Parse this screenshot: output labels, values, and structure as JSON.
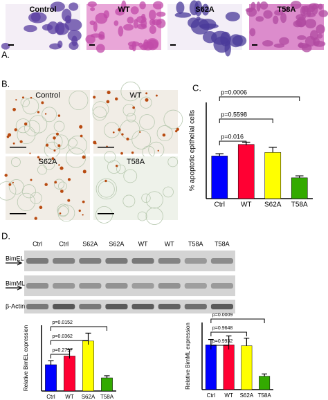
{
  "figure": {
    "panels": [
      "A.",
      "B.",
      "C.",
      "D."
    ],
    "panel_a_labels": [
      "Control",
      "WT",
      "S62A",
      "T58A"
    ],
    "panel_b_labels": [
      "Control",
      "WT",
      "S62A",
      "T58A"
    ],
    "blot": {
      "lanes": [
        "Ctrl",
        "Ctrl",
        "S62A",
        "S62A",
        "WT",
        "WT",
        "T58A",
        "T58A"
      ],
      "bands": [
        "BimEL",
        "BimML",
        "β-Actin"
      ]
    }
  },
  "chart_data": [
    {
      "type": "bar",
      "ylabel": "% apoptotic epithelial cells",
      "categories": [
        "Ctrl",
        "WT",
        "S62A",
        "T58A"
      ],
      "values": [
        13.3,
        16.9,
        14.4,
        6.5
      ],
      "errors": [
        0.7,
        0.7,
        1.6,
        0.6
      ],
      "colors": [
        "#0000ff",
        "#ff0033",
        "#ffff00",
        "#33aa00"
      ],
      "ylim": [
        0,
        30
      ],
      "annotations": [
        {
          "label": "p=0.0006",
          "between": [
            "Ctrl",
            "T58A"
          ]
        },
        {
          "label": "p=0.5598",
          "between": [
            "Ctrl",
            "S62A"
          ]
        },
        {
          "label": "p=0.016",
          "between": [
            "Ctrl",
            "WT"
          ]
        }
      ]
    },
    {
      "type": "bar",
      "ylabel": "Relative BimEL expression",
      "categories": [
        "Ctrl",
        "WT",
        "S62A",
        "T58A"
      ],
      "values": [
        1.0,
        1.33,
        1.9,
        0.5
      ],
      "errors": [
        0.15,
        0.25,
        0.3,
        0.08
      ],
      "colors": [
        "#0000ff",
        "#ff0033",
        "#ffff00",
        "#33aa00"
      ],
      "ylim": [
        0,
        2.5
      ],
      "annotations": [
        {
          "label": "p=0.0152",
          "between": [
            "Ctrl",
            "T58A"
          ]
        },
        {
          "label": "p=0.0362",
          "between": [
            "Ctrl",
            "S62A"
          ]
        },
        {
          "label": "p=0.2797",
          "between": [
            "Ctrl",
            "WT"
          ]
        }
      ]
    },
    {
      "type": "bar",
      "ylabel": "Relative BimML expression",
      "categories": [
        "Ctrl",
        "WT",
        "S62A",
        "T58A"
      ],
      "values": [
        1.0,
        1.0,
        0.98,
        0.3
      ],
      "errors": [
        0.12,
        0.2,
        0.17,
        0.05
      ],
      "colors": [
        "#0000ff",
        "#ff0033",
        "#ffff00",
        "#33aa00"
      ],
      "ylim": [
        0,
        1.5
      ],
      "annotations": [
        {
          "label": "p=0.0009",
          "between": [
            "Ctrl",
            "T58A"
          ]
        },
        {
          "label": "p=0.9648",
          "between": [
            "Ctrl",
            "S62A"
          ]
        },
        {
          "label": "p=0.9932",
          "between": [
            "Ctrl",
            "WT"
          ]
        }
      ]
    }
  ]
}
